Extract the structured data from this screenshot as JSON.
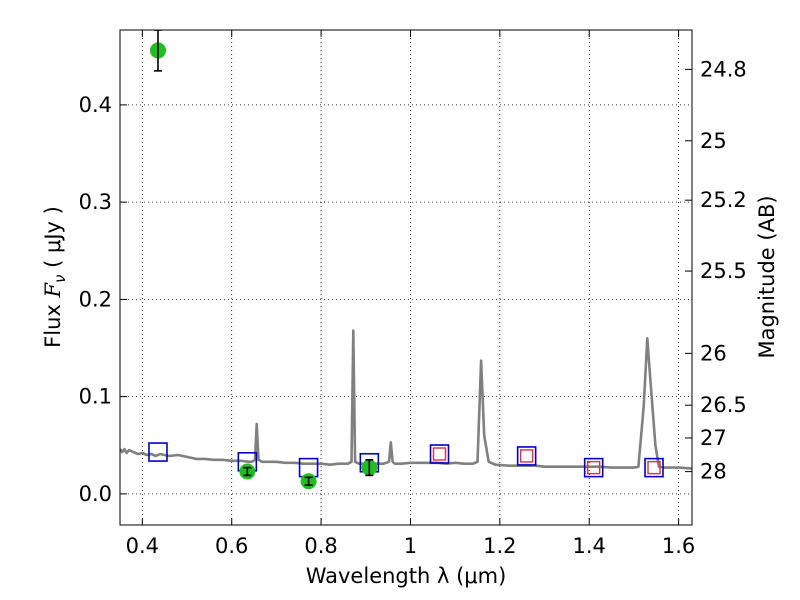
{
  "chart_data": {
    "type": "scatter",
    "title": "",
    "xlabel": "Wavelength  λ (μm)",
    "ylabel": "Flux  F_ν  ( μJy )",
    "ylabel_parts": {
      "prefix": "Flux  ",
      "symbol": "F",
      "subscript": "ν",
      "suffix": "  ( μJy )"
    },
    "y2label": "Magnitude (AB)",
    "xlim": [
      0.35,
      1.63
    ],
    "ylim": [
      -0.032,
      0.477
    ],
    "grid": true,
    "x_ticks": [
      0.4,
      0.6,
      0.8,
      1.0,
      1.2,
      1.4,
      1.6
    ],
    "x_tick_labels": [
      "0.4",
      "0.6",
      "0.8",
      "1",
      "1.2",
      "1.4",
      "1.6"
    ],
    "y_ticks": [
      0.0,
      0.1,
      0.2,
      0.3,
      0.4
    ],
    "y_tick_labels": [
      "0.0",
      "0.1",
      "0.2",
      "0.3",
      "0.4"
    ],
    "y2_ticks": [
      {
        "label": "24.8",
        "flux": 0.4365
      },
      {
        "label": "25",
        "flux": 0.3631
      },
      {
        "label": "25.2",
        "flux": 0.302
      },
      {
        "label": "25.5",
        "flux": 0.2291
      },
      {
        "label": "26",
        "flux": 0.1445
      },
      {
        "label": "26.5",
        "flux": 0.0912
      },
      {
        "label": "27",
        "flux": 0.0575
      },
      {
        "label": "28",
        "flux": 0.0229
      }
    ],
    "colors": {
      "sed": "#808080",
      "observed": "#1fbf1f",
      "model_optical": "#0000cc",
      "model_nir_outer": "#0000cc",
      "model_nir_inner": "#e0303a",
      "errorbar": "#000000"
    },
    "series": [
      {
        "kind": "line",
        "x": [
          0.35,
          0.355,
          0.36,
          0.365,
          0.37,
          0.38,
          0.39,
          0.4,
          0.41,
          0.42,
          0.43,
          0.44,
          0.46,
          0.48,
          0.5,
          0.52,
          0.54,
          0.56,
          0.58,
          0.6,
          0.62,
          0.64,
          0.645,
          0.652,
          0.656,
          0.66,
          0.668,
          0.7,
          0.72,
          0.74,
          0.76,
          0.78,
          0.8,
          0.82,
          0.84,
          0.86,
          0.868,
          0.872,
          0.876,
          0.885,
          0.9,
          0.92,
          0.94,
          0.952,
          0.956,
          0.96,
          0.965,
          0.98,
          1.0,
          1.02,
          1.04,
          1.06,
          1.08,
          1.1,
          1.12,
          1.14,
          1.15,
          1.158,
          1.165,
          1.175,
          1.19,
          1.22,
          1.25,
          1.28,
          1.3,
          1.32,
          1.35,
          1.38,
          1.4,
          1.42,
          1.45,
          1.48,
          1.5,
          1.51,
          1.522,
          1.53,
          1.538,
          1.548,
          1.556,
          1.57,
          1.6,
          1.63
        ],
        "y": [
          0.046,
          0.043,
          0.046,
          0.042,
          0.045,
          0.043,
          0.041,
          0.042,
          0.04,
          0.041,
          0.039,
          0.041,
          0.039,
          0.04,
          0.038,
          0.036,
          0.036,
          0.035,
          0.035,
          0.034,
          0.034,
          0.033,
          0.033,
          0.035,
          0.072,
          0.035,
          0.033,
          0.033,
          0.032,
          0.032,
          0.031,
          0.031,
          0.031,
          0.03,
          0.031,
          0.031,
          0.033,
          0.168,
          0.033,
          0.031,
          0.031,
          0.031,
          0.031,
          0.033,
          0.053,
          0.033,
          0.031,
          0.031,
          0.032,
          0.032,
          0.032,
          0.032,
          0.031,
          0.032,
          0.031,
          0.031,
          0.033,
          0.137,
          0.06,
          0.033,
          0.03,
          0.029,
          0.029,
          0.029,
          0.028,
          0.028,
          0.028,
          0.028,
          0.028,
          0.028,
          0.027,
          0.027,
          0.027,
          0.028,
          0.09,
          0.16,
          0.11,
          0.05,
          0.028,
          0.027,
          0.027,
          0.026
        ]
      },
      {
        "kind": "points",
        "x": [
          0.435,
          0.635,
          0.772,
          0.908
        ],
        "y": [
          0.456,
          0.023,
          0.013,
          0.027
        ],
        "yerr": [
          0.021,
          0.004,
          0.004,
          0.008
        ]
      },
      {
        "kind": "open-squares",
        "x": [
          0.435,
          0.635,
          0.772,
          0.908
        ],
        "y": [
          0.043,
          0.033,
          0.027,
          0.032
        ]
      },
      {
        "kind": "double-squares",
        "x": [
          1.065,
          1.26,
          1.41,
          1.545
        ],
        "y": [
          0.041,
          0.039,
          0.027,
          0.027
        ]
      }
    ]
  }
}
